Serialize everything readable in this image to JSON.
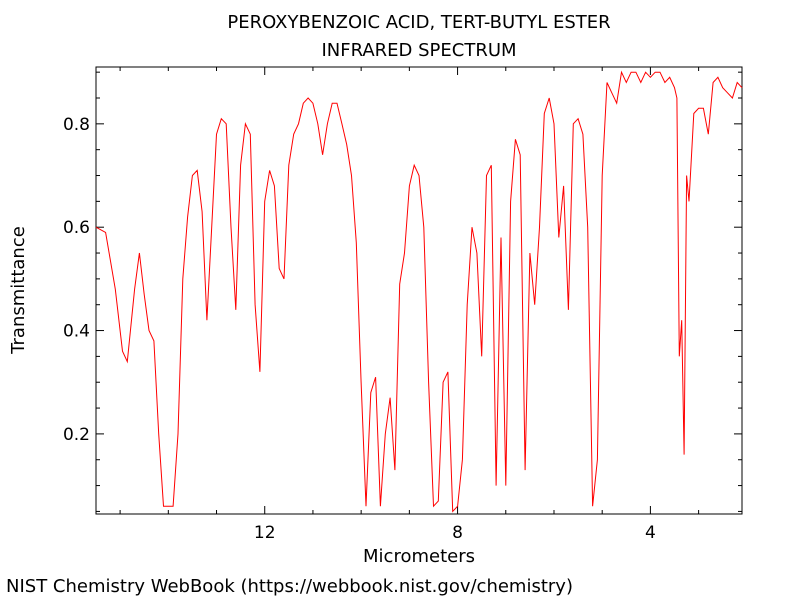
{
  "chart_data": {
    "type": "line",
    "title": "PEROXYBENZOIC ACID, TERT-BUTYL ESTER",
    "subtitle": "INFRARED SPECTRUM",
    "xlabel": "Micrometers",
    "ylabel": "Transmittance",
    "xlim": [
      15.5,
      2.1
    ],
    "ylim": [
      0.045,
      0.91
    ],
    "x_ticks": [
      12,
      8,
      4
    ],
    "y_ticks": [
      0.2,
      0.4,
      0.6,
      0.8
    ],
    "grid": false,
    "legend": "none",
    "series": [
      {
        "color": "#ff0000",
        "x": [
          15.5,
          15.3,
          15.1,
          14.95,
          14.85,
          14.7,
          14.6,
          14.5,
          14.4,
          14.3,
          14.2,
          14.1,
          14.0,
          13.9,
          13.8,
          13.7,
          13.6,
          13.5,
          13.4,
          13.3,
          13.2,
          13.1,
          13.0,
          12.9,
          12.8,
          12.7,
          12.6,
          12.5,
          12.4,
          12.3,
          12.2,
          12.1,
          12.0,
          11.9,
          11.8,
          11.7,
          11.6,
          11.5,
          11.4,
          11.3,
          11.2,
          11.1,
          11.0,
          10.9,
          10.8,
          10.7,
          10.6,
          10.5,
          10.4,
          10.3,
          10.2,
          10.1,
          10.0,
          9.9,
          9.8,
          9.7,
          9.6,
          9.5,
          9.4,
          9.3,
          9.2,
          9.1,
          9.0,
          8.9,
          8.8,
          8.7,
          8.6,
          8.5,
          8.4,
          8.3,
          8.2,
          8.1,
          8.0,
          7.9,
          7.8,
          7.7,
          7.6,
          7.5,
          7.4,
          7.3,
          7.2,
          7.1,
          7.0,
          6.9,
          6.8,
          6.7,
          6.6,
          6.5,
          6.4,
          6.3,
          6.2,
          6.1,
          6.0,
          5.9,
          5.8,
          5.7,
          5.6,
          5.5,
          5.4,
          5.3,
          5.2,
          5.1,
          5.0,
          4.9,
          4.8,
          4.7,
          4.6,
          4.5,
          4.4,
          4.3,
          4.2,
          4.1,
          4.0,
          3.9,
          3.8,
          3.7,
          3.6,
          3.5,
          3.45,
          3.4,
          3.35,
          3.3,
          3.25,
          3.2,
          3.1,
          3.0,
          2.9,
          2.8,
          2.7,
          2.6,
          2.5,
          2.4,
          2.3,
          2.2,
          2.1
        ],
        "y": [
          0.6,
          0.59,
          0.48,
          0.36,
          0.34,
          0.48,
          0.55,
          0.47,
          0.4,
          0.38,
          0.2,
          0.06,
          0.06,
          0.06,
          0.2,
          0.5,
          0.62,
          0.7,
          0.71,
          0.63,
          0.42,
          0.6,
          0.78,
          0.81,
          0.8,
          0.6,
          0.44,
          0.72,
          0.8,
          0.78,
          0.45,
          0.32,
          0.65,
          0.71,
          0.68,
          0.52,
          0.5,
          0.72,
          0.78,
          0.8,
          0.84,
          0.85,
          0.84,
          0.8,
          0.74,
          0.8,
          0.84,
          0.84,
          0.8,
          0.76,
          0.7,
          0.57,
          0.3,
          0.06,
          0.28,
          0.31,
          0.06,
          0.2,
          0.27,
          0.13,
          0.49,
          0.55,
          0.68,
          0.72,
          0.7,
          0.6,
          0.3,
          0.06,
          0.07,
          0.3,
          0.32,
          0.05,
          0.06,
          0.15,
          0.45,
          0.6,
          0.55,
          0.35,
          0.7,
          0.72,
          0.1,
          0.58,
          0.1,
          0.65,
          0.77,
          0.74,
          0.13,
          0.55,
          0.45,
          0.6,
          0.82,
          0.85,
          0.8,
          0.58,
          0.68,
          0.44,
          0.8,
          0.81,
          0.78,
          0.6,
          0.06,
          0.15,
          0.7,
          0.88,
          0.86,
          0.84,
          0.9,
          0.88,
          0.9,
          0.9,
          0.88,
          0.9,
          0.89,
          0.9,
          0.9,
          0.88,
          0.89,
          0.87,
          0.85,
          0.35,
          0.42,
          0.16,
          0.7,
          0.65,
          0.82,
          0.83,
          0.83,
          0.78,
          0.88,
          0.89,
          0.87,
          0.86,
          0.85,
          0.88,
          0.87
        ]
      }
    ]
  },
  "footer": {
    "credit": "NIST Chemistry WebBook (https://webbook.nist.gov/chemistry)"
  }
}
